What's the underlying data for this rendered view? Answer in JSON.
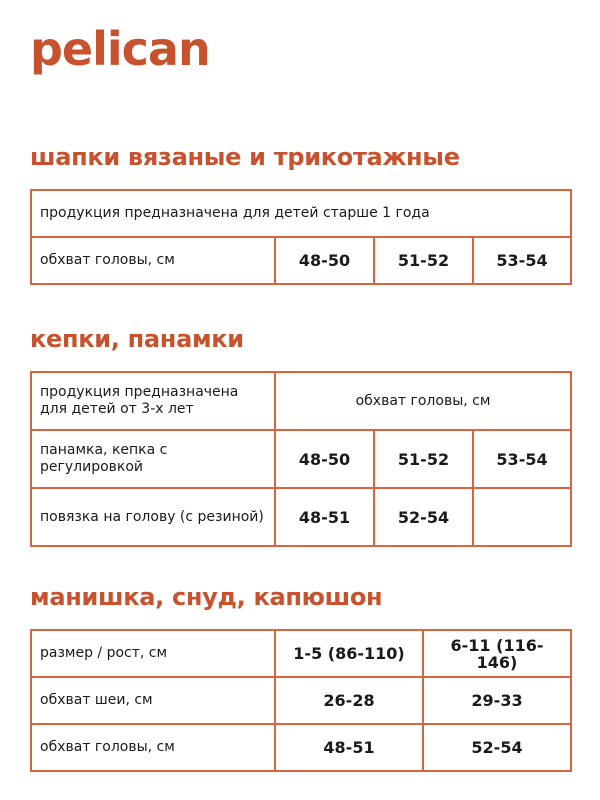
{
  "brand": {
    "logo": "pelican",
    "color": "#c9522e"
  },
  "sections": [
    {
      "title": "шапки вязаные и трикотажные",
      "note": "продукция предназначена для детей старше 1 года",
      "row": {
        "label": "обхват головы, см",
        "values": [
          "48-50",
          "51-52",
          "53-54"
        ]
      }
    },
    {
      "title": "кепки, панамки",
      "header": {
        "label": "продукция предназначена для детей от 3-х лет",
        "value": "обхват головы, см"
      },
      "rows": [
        {
          "label": "панамка, кепка с регулировкой",
          "values": [
            "48-50",
            "51-52",
            "53-54"
          ]
        },
        {
          "label": "повязка на голову (с резиной)",
          "values": [
            "48-51",
            "52-54",
            ""
          ]
        }
      ]
    },
    {
      "title": "манишка, снуд, капюшон",
      "rows": [
        {
          "label": "размер / рост, см",
          "values": [
            "1-5 (86-110)",
            "6-11 (116-146)"
          ]
        },
        {
          "label": "обхват шеи, см",
          "values": [
            "26-28",
            "29-33"
          ]
        },
        {
          "label": "обхват головы, см",
          "values": [
            "48-51",
            "52-54"
          ]
        }
      ]
    }
  ]
}
